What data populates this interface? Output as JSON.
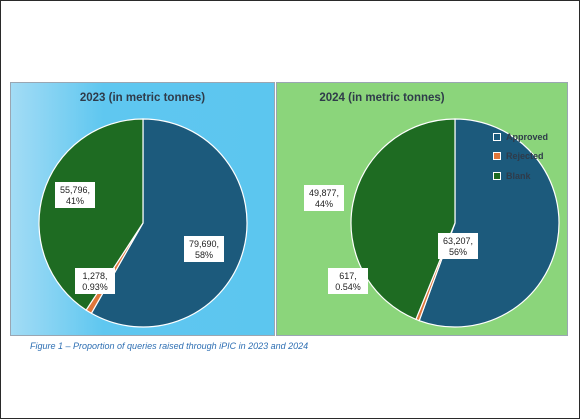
{
  "chart_data": [
    {
      "type": "pie",
      "title": "2023 (in metric tonnes)",
      "categories": [
        "Approved",
        "Rejected",
        "Blank"
      ],
      "values": [
        79690,
        1278,
        55796
      ],
      "percent_labels": [
        "58%",
        "0.93%",
        "41%"
      ],
      "value_labels": [
        "79,690,",
        "1,278,",
        "55,796,"
      ],
      "colors": [
        "#1c5a7c",
        "#e0763a",
        "#1e6b22"
      ]
    },
    {
      "type": "pie",
      "title": "2024 (in metric tonnes)",
      "categories": [
        "Approved",
        "Rejected",
        "Blank"
      ],
      "values": [
        63207,
        617,
        49877
      ],
      "percent_labels": [
        "56%",
        "0.54%",
        "44%"
      ],
      "value_labels": [
        "63,207,",
        "617,",
        "49,877,"
      ],
      "colors": [
        "#1c5a7c",
        "#e0763a",
        "#1e6b22"
      ],
      "legend": {
        "position": "right",
        "entries": [
          "Approved",
          "Rejected",
          "Blank"
        ]
      }
    }
  ],
  "caption": "Figure 1 – Proportion of queries raised through iPIC in 2023 and 2024"
}
